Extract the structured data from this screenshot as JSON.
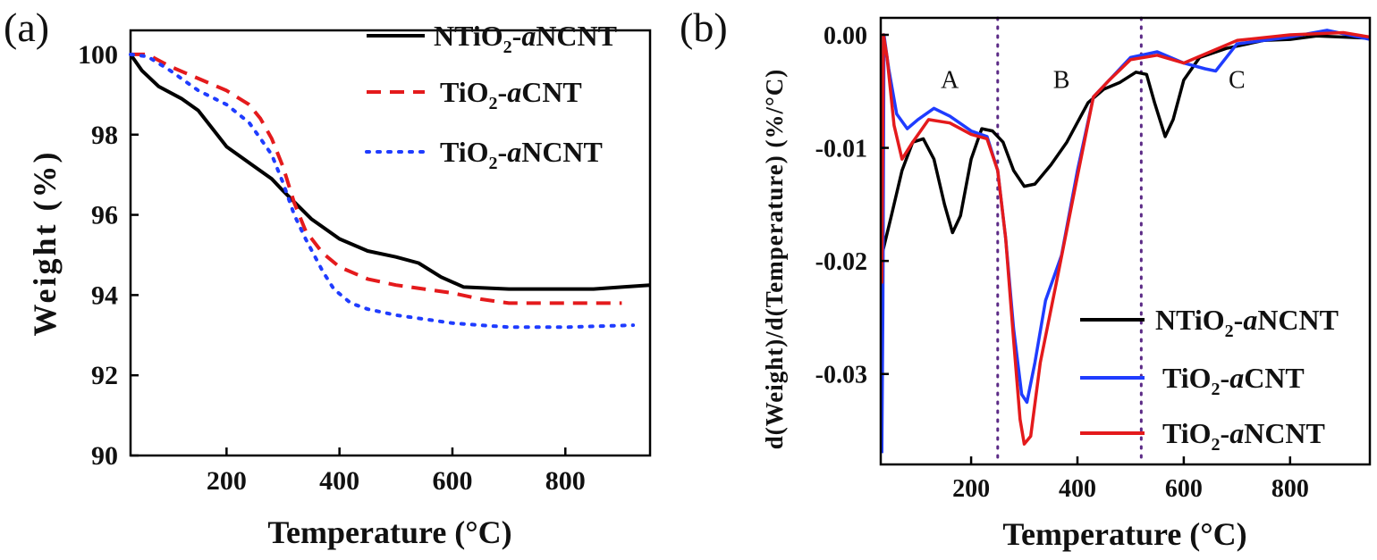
{
  "chart_data": [
    {
      "type": "line",
      "panel_label": "(a)",
      "xlabel": "Temperature (°C)",
      "ylabel": "Weight (%)",
      "xlim": [
        30,
        950
      ],
      "ylim": [
        90,
        100.6
      ],
      "xticks": [
        200,
        400,
        600,
        800
      ],
      "yticks": [
        90,
        92,
        94,
        96,
        98,
        100
      ],
      "xtick_labels": [
        "200",
        "400",
        "600",
        "800"
      ],
      "ytick_labels": [
        "90",
        "92",
        "94",
        "96",
        "98",
        "100"
      ],
      "legend_position": "top-right",
      "series": [
        {
          "name": "NTiO2-aNCNT",
          "legend": {
            "pre": "NTiO",
            "sub": "2",
            "mid": "-",
            "ital": "a",
            "post": "NCNT"
          },
          "color": "#000000",
          "style": "solid",
          "points": [
            [
              30,
              100
            ],
            [
              50,
              99.6
            ],
            [
              80,
              99.2
            ],
            [
              120,
              98.9
            ],
            [
              150,
              98.6
            ],
            [
              200,
              97.7
            ],
            [
              250,
              97.2
            ],
            [
              280,
              96.9
            ],
            [
              300,
              96.6
            ],
            [
              350,
              95.9
            ],
            [
              400,
              95.4
            ],
            [
              450,
              95.1
            ],
            [
              500,
              94.95
            ],
            [
              540,
              94.8
            ],
            [
              580,
              94.45
            ],
            [
              620,
              94.2
            ],
            [
              700,
              94.15
            ],
            [
              800,
              94.15
            ],
            [
              850,
              94.15
            ],
            [
              900,
              94.2
            ],
            [
              950,
              94.25
            ]
          ]
        },
        {
          "name": "TiO2-aCNT",
          "legend": {
            "pre": "TiO",
            "sub": "2",
            "mid": "-",
            "ital": "a",
            "post": "CNT"
          },
          "color": "#e41a1c",
          "style": "dashed",
          "points": [
            [
              30,
              100
            ],
            [
              60,
              100
            ],
            [
              100,
              99.7
            ],
            [
              150,
              99.4
            ],
            [
              200,
              99.1
            ],
            [
              240,
              98.75
            ],
            [
              260,
              98.4
            ],
            [
              280,
              97.9
            ],
            [
              300,
              97.2
            ],
            [
              320,
              96.3
            ],
            [
              340,
              95.6
            ],
            [
              370,
              95.05
            ],
            [
              400,
              94.7
            ],
            [
              450,
              94.4
            ],
            [
              500,
              94.25
            ],
            [
              550,
              94.15
            ],
            [
              600,
              94.05
            ],
            [
              650,
              93.9
            ],
            [
              700,
              93.8
            ],
            [
              800,
              93.8
            ],
            [
              900,
              93.8
            ]
          ]
        },
        {
          "name": "TiO2-aNCNT",
          "legend": {
            "pre": "TiO",
            "sub": "2",
            "mid": "-",
            "ital": "a",
            "post": "NCNT"
          },
          "color": "#1f3cff",
          "style": "dotted",
          "points": [
            [
              30,
              100
            ],
            [
              60,
              99.95
            ],
            [
              100,
              99.6
            ],
            [
              150,
              99.1
            ],
            [
              200,
              98.75
            ],
            [
              240,
              98.3
            ],
            [
              260,
              97.9
            ],
            [
              280,
              97.5
            ],
            [
              300,
              96.8
            ],
            [
              320,
              96.0
            ],
            [
              340,
              95.4
            ],
            [
              370,
              94.6
            ],
            [
              390,
              94.15
            ],
            [
              420,
              93.8
            ],
            [
              450,
              93.65
            ],
            [
              500,
              93.5
            ],
            [
              550,
              93.4
            ],
            [
              600,
              93.3
            ],
            [
              650,
              93.25
            ],
            [
              700,
              93.2
            ],
            [
              800,
              93.2
            ],
            [
              920,
              93.25
            ]
          ]
        }
      ]
    },
    {
      "type": "line",
      "panel_label": "(b)",
      "xlabel": "Temperature (°C)",
      "ylabel": "d(Weight)/d(Temperature) (%/°C)",
      "xlim": [
        30,
        950
      ],
      "ylim": [
        -0.038,
        0.0015
      ],
      "xticks": [
        200,
        400,
        600,
        800
      ],
      "yticks": [
        0,
        -0.01,
        -0.02,
        -0.03
      ],
      "xtick_labels": [
        "200",
        "400",
        "600",
        "800"
      ],
      "ytick_labels": [
        "0.00",
        "-0.01",
        "-0.02",
        "-0.03"
      ],
      "legend_position": "bottom-right",
      "vlines": [
        250,
        520
      ],
      "regions": [
        {
          "label": "A",
          "x": 160,
          "y": -0.0047
        },
        {
          "label": "B",
          "x": 370,
          "y": -0.0047
        },
        {
          "label": "C",
          "x": 700,
          "y": -0.0047
        }
      ],
      "series": [
        {
          "name": "NTiO2-aNCNT",
          "legend": {
            "pre": "NTiO",
            "sub": "2",
            "mid": "-",
            "ital": "a",
            "post": "NCNT"
          },
          "color": "#000000",
          "style": "solid",
          "points": [
            [
              32,
              -0.0195
            ],
            [
              50,
              -0.016
            ],
            [
              70,
              -0.012
            ],
            [
              90,
              -0.0095
            ],
            [
              110,
              -0.0092
            ],
            [
              130,
              -0.011
            ],
            [
              150,
              -0.015
            ],
            [
              165,
              -0.0175
            ],
            [
              180,
              -0.016
            ],
            [
              200,
              -0.011
            ],
            [
              220,
              -0.0083
            ],
            [
              240,
              -0.0085
            ],
            [
              260,
              -0.0095
            ],
            [
              280,
              -0.012
            ],
            [
              300,
              -0.0134
            ],
            [
              320,
              -0.0132
            ],
            [
              350,
              -0.0115
            ],
            [
              380,
              -0.0095
            ],
            [
              420,
              -0.006
            ],
            [
              450,
              -0.0048
            ],
            [
              480,
              -0.0042
            ],
            [
              510,
              -0.0033
            ],
            [
              530,
              -0.0035
            ],
            [
              545,
              -0.006
            ],
            [
              565,
              -0.009
            ],
            [
              580,
              -0.0075
            ],
            [
              600,
              -0.004
            ],
            [
              630,
              -0.002
            ],
            [
              680,
              -0.0012
            ],
            [
              750,
              -0.0005
            ],
            [
              800,
              -0.0004
            ],
            [
              850,
              -0.0001
            ],
            [
              900,
              -0.0002
            ],
            [
              950,
              -0.0003
            ]
          ]
        },
        {
          "name": "TiO2-aCNT",
          "legend": {
            "pre": "TiO",
            "sub": "2",
            "mid": "-",
            "ital": "a",
            "post": "CNT"
          },
          "color": "#1f3cff",
          "style": "solid",
          "points": [
            [
              32,
              -0.037
            ],
            [
              34,
              -0.024
            ],
            [
              36,
              0.0
            ],
            [
              45,
              -0.003
            ],
            [
              60,
              -0.007
            ],
            [
              80,
              -0.0083
            ],
            [
              100,
              -0.0075
            ],
            [
              130,
              -0.0065
            ],
            [
              160,
              -0.0072
            ],
            [
              200,
              -0.0085
            ],
            [
              230,
              -0.009
            ],
            [
              250,
              -0.012
            ],
            [
              265,
              -0.018
            ],
            [
              280,
              -0.026
            ],
            [
              295,
              -0.0318
            ],
            [
              305,
              -0.0325
            ],
            [
              320,
              -0.029
            ],
            [
              340,
              -0.0235
            ],
            [
              370,
              -0.0195
            ],
            [
              400,
              -0.012
            ],
            [
              430,
              -0.0055
            ],
            [
              460,
              -0.004
            ],
            [
              500,
              -0.002
            ],
            [
              550,
              -0.0015
            ],
            [
              600,
              -0.0025
            ],
            [
              640,
              -0.003
            ],
            [
              660,
              -0.0032
            ],
            [
              680,
              -0.002
            ],
            [
              700,
              -0.0008
            ],
            [
              800,
              -0.0002
            ],
            [
              870,
              0.0004
            ],
            [
              950,
              -0.0004
            ]
          ]
        },
        {
          "name": "TiO2-aNCNT",
          "legend": {
            "pre": "TiO",
            "sub": "2",
            "mid": "-",
            "ital": "a",
            "post": "NCNT"
          },
          "color": "#e41a1c",
          "style": "solid",
          "points": [
            [
              32,
              -0.022
            ],
            [
              35,
              0.0
            ],
            [
              42,
              -0.002
            ],
            [
              55,
              -0.008
            ],
            [
              70,
              -0.011
            ],
            [
              90,
              -0.0095
            ],
            [
              120,
              -0.0075
            ],
            [
              160,
              -0.0078
            ],
            [
              200,
              -0.0088
            ],
            [
              230,
              -0.0092
            ],
            [
              250,
              -0.012
            ],
            [
              265,
              -0.018
            ],
            [
              280,
              -0.027
            ],
            [
              292,
              -0.034
            ],
            [
              300,
              -0.0362
            ],
            [
              312,
              -0.0355
            ],
            [
              330,
              -0.029
            ],
            [
              360,
              -0.022
            ],
            [
              400,
              -0.0125
            ],
            [
              430,
              -0.0055
            ],
            [
              460,
              -0.004
            ],
            [
              500,
              -0.0022
            ],
            [
              550,
              -0.0018
            ],
            [
              600,
              -0.0025
            ],
            [
              650,
              -0.0015
            ],
            [
              700,
              -0.0005
            ],
            [
              800,
              0.0
            ],
            [
              900,
              0.0002
            ],
            [
              950,
              -0.0002
            ]
          ]
        }
      ]
    }
  ]
}
